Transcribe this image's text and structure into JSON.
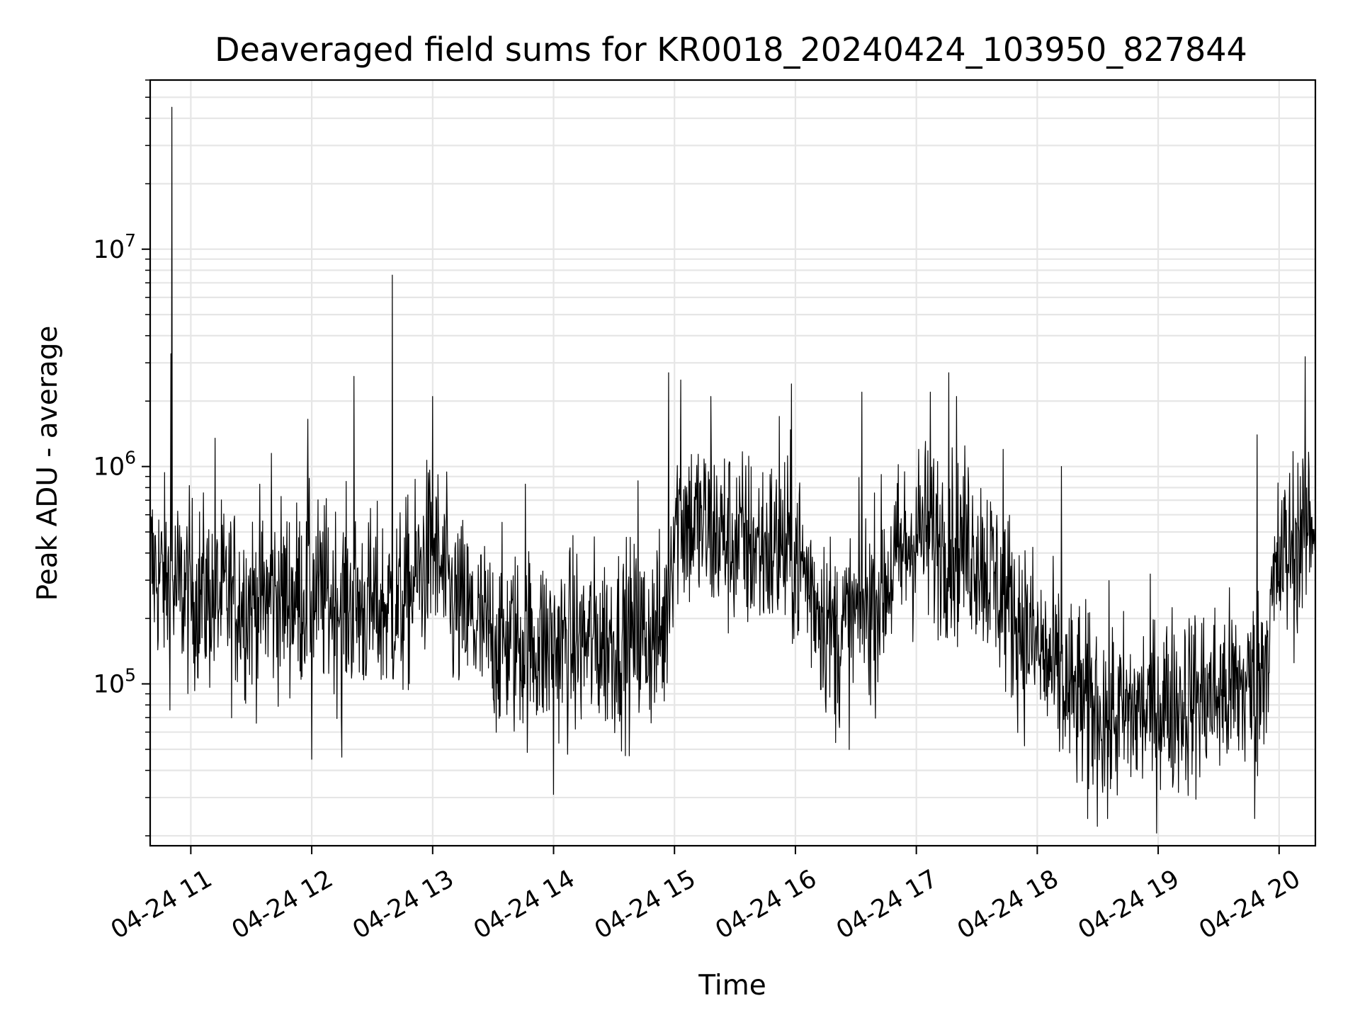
{
  "chart_data": {
    "type": "line",
    "title": "Deaveraged field sums for KR0018_20240424_103950_827844",
    "xlabel": "Time",
    "ylabel": "Peak ADU - average",
    "x_axis": {
      "kind": "time",
      "range": [
        "2024-04-24T10:39:50",
        "2024-04-24T20:18:00"
      ],
      "ticks": [
        {
          "value": "2024-04-24T11:00",
          "label": "04-24 11"
        },
        {
          "value": "2024-04-24T12:00",
          "label": "04-24 12"
        },
        {
          "value": "2024-04-24T13:00",
          "label": "04-24 13"
        },
        {
          "value": "2024-04-24T14:00",
          "label": "04-24 14"
        },
        {
          "value": "2024-04-24T15:00",
          "label": "04-24 15"
        },
        {
          "value": "2024-04-24T16:00",
          "label": "04-24 16"
        },
        {
          "value": "2024-04-24T17:00",
          "label": "04-24 17"
        },
        {
          "value": "2024-04-24T18:00",
          "label": "04-24 18"
        },
        {
          "value": "2024-04-24T19:00",
          "label": "04-24 19"
        },
        {
          "value": "2024-04-24T20:00",
          "label": "04-24 20"
        }
      ]
    },
    "y_axis": {
      "scale": "log",
      "range": [
        18000,
        60000000
      ],
      "ticks": [
        {
          "value": 100000,
          "base": "10",
          "exp": "5"
        },
        {
          "value": 1000000,
          "base": "10",
          "exp": "6"
        },
        {
          "value": 10000000,
          "base": "10",
          "exp": "7"
        }
      ]
    },
    "grid": true,
    "line_color": "#000000",
    "grid_color": "#e6e6e6",
    "baseline": [
      {
        "t": "2024-04-24T10:40",
        "v": 350000
      },
      {
        "t": "2024-04-24T10:50",
        "v": 280000
      },
      {
        "t": "2024-04-24T11:00",
        "v": 260000
      },
      {
        "t": "2024-04-24T11:30",
        "v": 240000
      },
      {
        "t": "2024-04-24T12:00",
        "v": 260000
      },
      {
        "t": "2024-04-24T12:30",
        "v": 220000
      },
      {
        "t": "2024-04-24T12:45",
        "v": 230000
      },
      {
        "t": "2024-04-24T13:00",
        "v": 420000
      },
      {
        "t": "2024-04-24T13:10",
        "v": 230000
      },
      {
        "t": "2024-04-24T13:30",
        "v": 160000
      },
      {
        "t": "2024-04-24T14:00",
        "v": 150000
      },
      {
        "t": "2024-04-24T14:30",
        "v": 160000
      },
      {
        "t": "2024-04-24T14:55",
        "v": 170000
      },
      {
        "t": "2024-04-24T15:00",
        "v": 600000
      },
      {
        "t": "2024-04-24T15:30",
        "v": 450000
      },
      {
        "t": "2024-04-24T16:00",
        "v": 400000
      },
      {
        "t": "2024-04-24T16:20",
        "v": 160000
      },
      {
        "t": "2024-04-24T16:40",
        "v": 250000
      },
      {
        "t": "2024-04-24T17:00",
        "v": 500000
      },
      {
        "t": "2024-04-24T17:30",
        "v": 420000
      },
      {
        "t": "2024-04-24T17:50",
        "v": 200000
      },
      {
        "t": "2024-04-24T18:15",
        "v": 90000
      },
      {
        "t": "2024-04-24T18:40",
        "v": 70000
      },
      {
        "t": "2024-04-24T19:00",
        "v": 80000
      },
      {
        "t": "2024-04-24T19:30",
        "v": 90000
      },
      {
        "t": "2024-04-24T19:50",
        "v": 100000
      },
      {
        "t": "2024-04-24T20:00",
        "v": 350000
      },
      {
        "t": "2024-04-24T20:18",
        "v": 600000
      }
    ],
    "noise_decades": 0.22,
    "samples": 2400,
    "spikes": [
      {
        "t": "2024-04-24T10:50:30",
        "v": 45000000
      },
      {
        "t": "2024-04-24T10:50:10",
        "v": 3300000
      },
      {
        "t": "2024-04-24T11:12",
        "v": 1350000
      },
      {
        "t": "2024-04-24T11:40",
        "v": 1150000
      },
      {
        "t": "2024-04-24T11:58",
        "v": 1650000
      },
      {
        "t": "2024-04-24T12:21",
        "v": 2600000
      },
      {
        "t": "2024-04-24T12:40",
        "v": 7600000
      },
      {
        "t": "2024-04-24T13:00",
        "v": 2100000
      },
      {
        "t": "2024-04-24T13:46",
        "v": 830000
      },
      {
        "t": "2024-04-24T14:42",
        "v": 860000
      },
      {
        "t": "2024-04-24T14:57",
        "v": 2700000
      },
      {
        "t": "2024-04-24T15:03",
        "v": 2500000
      },
      {
        "t": "2024-04-24T15:18",
        "v": 2100000
      },
      {
        "t": "2024-04-24T15:52",
        "v": 1700000
      },
      {
        "t": "2024-04-24T15:58",
        "v": 2400000
      },
      {
        "t": "2024-04-24T16:33",
        "v": 2200000
      },
      {
        "t": "2024-04-24T17:07",
        "v": 2200000
      },
      {
        "t": "2024-04-24T17:16",
        "v": 2700000
      },
      {
        "t": "2024-04-24T17:20",
        "v": 2100000
      },
      {
        "t": "2024-04-24T17:43",
        "v": 1200000
      },
      {
        "t": "2024-04-24T18:12",
        "v": 1000000
      },
      {
        "t": "2024-04-24T19:49",
        "v": 1400000
      },
      {
        "t": "2024-04-24T20:13",
        "v": 3200000
      },
      {
        "t": "2024-04-24T12:00",
        "v": 45000
      },
      {
        "t": "2024-04-24T12:15",
        "v": 46000
      },
      {
        "t": "2024-04-24T14:00",
        "v": 31000
      },
      {
        "t": "2024-04-24T18:25",
        "v": 24000
      },
      {
        "t": "2024-04-24T18:35",
        "v": 24000
      },
      {
        "t": "2024-04-24T19:48",
        "v": 24000
      }
    ]
  }
}
